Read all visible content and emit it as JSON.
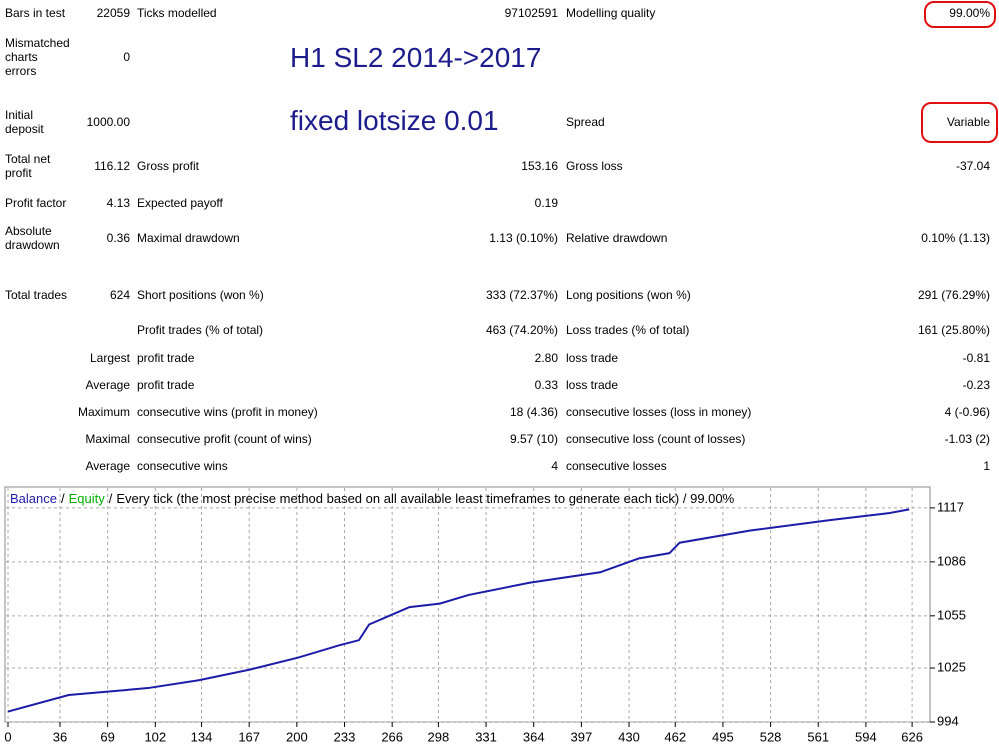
{
  "report": {
    "rows": [
      [
        "Bars in test",
        "22059",
        "Ticks modelled",
        "97102591",
        "Modelling quality",
        "99.00%"
      ],
      [
        "Mismatched charts errors",
        "0",
        null,
        null,
        null,
        null
      ],
      [
        "Initial deposit",
        "1000.00",
        null,
        null,
        "Spread",
        "Variable"
      ],
      [
        "Total net profit",
        "116.12",
        "Gross profit",
        "153.16",
        "Gross loss",
        "-37.04"
      ],
      [
        "Profit factor",
        "4.13",
        "Expected payoff",
        "0.19",
        null,
        null
      ],
      [
        "Absolute drawdown",
        "0.36",
        "Maximal drawdown",
        "1.13 (0.10%)",
        "Relative drawdown",
        "0.10% (1.13)"
      ],
      [
        "Total trades",
        "624",
        "Short positions (won %)",
        "333 (72.37%)",
        "Long positions (won %)",
        "291 (76.29%)"
      ],
      [
        null,
        null,
        "Profit trades (% of total)",
        "463 (74.20%)",
        "Loss trades (% of total)",
        "161 (25.80%)"
      ],
      [
        null,
        "Largest",
        "profit trade",
        "2.80",
        "loss trade",
        "-0.81"
      ],
      [
        null,
        "Average",
        "profit trade",
        "0.33",
        "loss trade",
        "-0.23"
      ],
      [
        null,
        "Maximum",
        "consecutive wins (profit in money)",
        "18 (4.36)",
        "consecutive losses (loss in money)",
        "4 (-0.96)"
      ],
      [
        null,
        "Maximal",
        "consecutive profit (count of wins)",
        "9.57 (10)",
        "consecutive loss (count of losses)",
        "-1.03 (2)"
      ],
      [
        null,
        "Average",
        "consecutive wins",
        "4",
        "consecutive losses",
        "1"
      ]
    ],
    "annotations": [
      "H1 SL2 2014->2017",
      "fixed lotsize 0.01"
    ]
  },
  "chart_data": {
    "type": "line",
    "separator": "/",
    "equity_label": {
      "text": "Equity",
      "color": "#00b000"
    },
    "subtitle": "Every tick (the most precise method based on all available least timeframes to generate each tick) / 99.00%",
    "x": [
      0,
      42,
      97,
      132,
      167,
      201,
      229,
      243,
      250,
      278,
      299,
      319,
      361,
      410,
      437,
      458,
      465,
      514,
      569,
      610,
      624
    ],
    "series": [
      {
        "name": "Balance",
        "color": "#1c1ca8",
        "values": [
          1000,
          1009.5,
          1013.5,
          1018,
          1024,
          1031,
          1038,
          1041,
          1050,
          1060,
          1062,
          1067,
          1074,
          1080,
          1088,
          1091,
          1097,
          1104,
          1110,
          1114,
          1116.12
        ]
      }
    ],
    "xlim": [
      0,
      637
    ],
    "ylim": [
      994,
      1129
    ],
    "xticks": [
      0,
      36,
      69,
      102,
      134,
      167,
      200,
      233,
      266,
      298,
      331,
      364,
      397,
      430,
      462,
      495,
      528,
      561,
      594,
      626
    ],
    "yticks": [
      994,
      1025,
      1055,
      1086,
      1117
    ],
    "grid": true
  }
}
